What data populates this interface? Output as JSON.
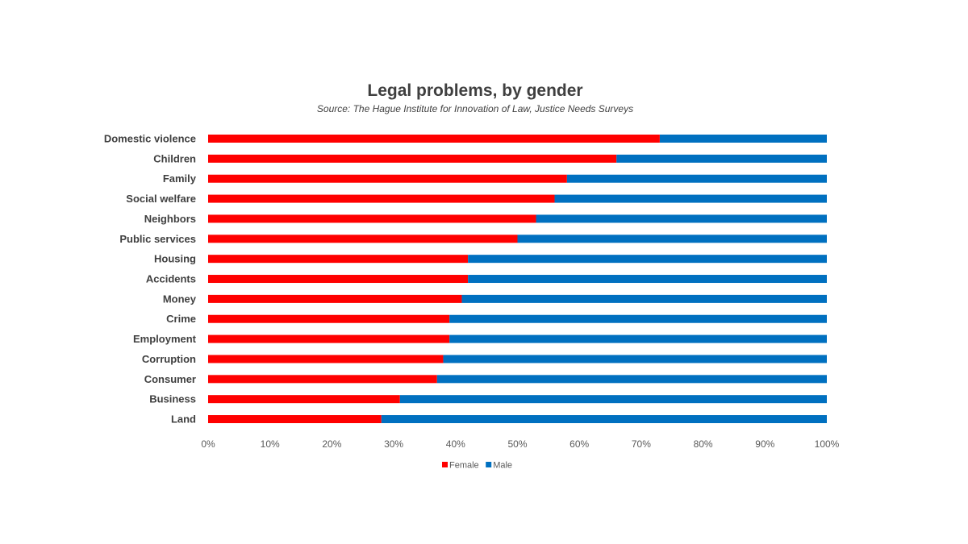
{
  "chart_data": {
    "type": "bar",
    "orientation": "horizontal",
    "stacked": true,
    "percent_stacked": true,
    "title": "Legal problems, by gender",
    "subtitle": "Source: The Hague Institute for Innovation of Law, Justice Needs Surveys",
    "categories": [
      "Domestic violence",
      "Children",
      "Family",
      "Social welfare",
      "Neighbors",
      "Public services",
      "Housing",
      "Accidents",
      "Money",
      "Crime",
      "Employment",
      "Corruption",
      "Consumer",
      "Business",
      "Land"
    ],
    "series": [
      {
        "name": "Female",
        "color": "#ff0000",
        "values": [
          73,
          66,
          58,
          56,
          53,
          50,
          42,
          42,
          41,
          39,
          39,
          38,
          37,
          31,
          28
        ]
      },
      {
        "name": "Male",
        "color": "#0070c0",
        "values": [
          27,
          34,
          42,
          44,
          47,
          50,
          58,
          58,
          59,
          61,
          61,
          62,
          63,
          69,
          72
        ]
      }
    ],
    "xlim": [
      0,
      100
    ],
    "x_ticks": [
      "0%",
      "10%",
      "20%",
      "30%",
      "40%",
      "50%",
      "60%",
      "70%",
      "80%",
      "90%",
      "100%"
    ],
    "grid": false,
    "legend_position": "bottom"
  }
}
